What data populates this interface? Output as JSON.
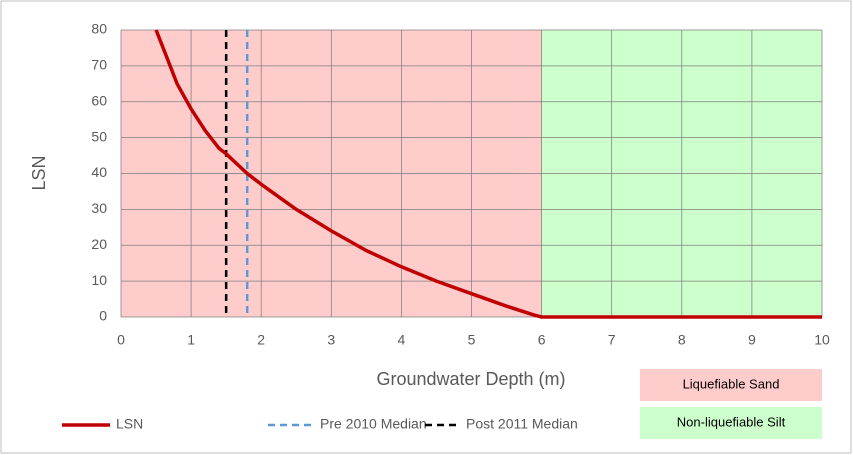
{
  "chart_data": {
    "type": "line",
    "x_label": "Groundwater Depth (m)",
    "y_label": "LSN",
    "x": [
      0.5,
      0.6,
      0.8,
      1.0,
      1.2,
      1.4,
      1.5,
      1.8,
      2.0,
      2.5,
      3.0,
      3.5,
      4.0,
      4.5,
      5.0,
      5.5,
      5.9,
      6.0,
      7,
      8,
      9,
      10
    ],
    "series": [
      {
        "name": "LSN",
        "color": "#c00000",
        "values": [
          80,
          75,
          65,
          58,
          52,
          47,
          45.5,
          40,
          37,
          30,
          24,
          18.5,
          14,
          10,
          6.5,
          3,
          0.5,
          0,
          0,
          0,
          0,
          0
        ]
      }
    ],
    "vlines": [
      {
        "name": "Pre 2010 Median",
        "color": "#5b9bd5",
        "x": 1.8
      },
      {
        "name": "Post 2011 Median",
        "color": "#000000",
        "x": 1.5
      }
    ],
    "regions": [
      {
        "label": "Liquefiable Sand",
        "color": "#ffcccc",
        "x": [
          0,
          6
        ]
      },
      {
        "label": "Non-liquefiable Silt",
        "color": "#ccffcc",
        "x": [
          6,
          10
        ]
      }
    ],
    "xlim": [
      0,
      10
    ],
    "ylim": [
      0,
      80
    ],
    "xticks": [
      0,
      1,
      2,
      3,
      4,
      5,
      6,
      7,
      8,
      9,
      10
    ],
    "yticks": [
      0,
      10,
      20,
      30,
      40,
      50,
      60,
      70,
      80
    ],
    "grid": true
  }
}
